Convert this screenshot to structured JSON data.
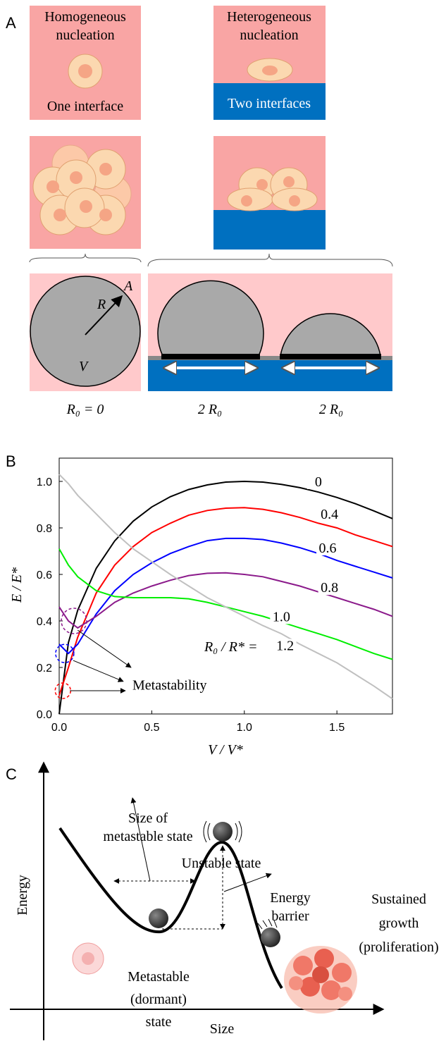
{
  "panel_a": {
    "letter": "A",
    "homogeneous": {
      "title": [
        "Homogeneous",
        "nucleation"
      ],
      "caption": "One interface"
    },
    "heterogeneous": {
      "title": [
        "Heterogeneous",
        "nucleation"
      ],
      "caption": "Two interfaces"
    },
    "sphere_labels": {
      "radius": "R",
      "area": "A",
      "volume": "V"
    },
    "bottom_labels": [
      "R₀ = 0",
      "2 R₀",
      "2 R₀"
    ]
  },
  "panel_b": {
    "letter": "B",
    "type": "line",
    "x": [
      0,
      0.05,
      0.1,
      0.2,
      0.3,
      0.4,
      0.5,
      0.6,
      0.7,
      0.8,
      0.9,
      1.0,
      1.1,
      1.2,
      1.3,
      1.4,
      1.5,
      1.6,
      1.7,
      1.8
    ],
    "series": [
      {
        "name": "0",
        "color": "#000000",
        "values": [
          0,
          0.307,
          0.446,
          0.626,
          0.744,
          0.829,
          0.89,
          0.934,
          0.965,
          0.985,
          0.997,
          1.0,
          0.997,
          0.987,
          0.973,
          0.954,
          0.931,
          0.904,
          0.873,
          0.84
        ]
      },
      {
        "name": "0.4",
        "color": "#ff0000",
        "values": [
          0.08,
          0.2,
          0.33,
          0.52,
          0.64,
          0.72,
          0.78,
          0.82,
          0.855,
          0.875,
          0.885,
          0.887,
          0.88,
          0.865,
          0.845,
          0.82,
          0.8,
          0.77,
          0.745,
          0.72
        ]
      },
      {
        "name": "0.6",
        "color": "#0000ff",
        "values": [
          0.3,
          0.26,
          0.3,
          0.43,
          0.53,
          0.6,
          0.65,
          0.69,
          0.72,
          0.745,
          0.755,
          0.755,
          0.75,
          0.735,
          0.715,
          0.69,
          0.66,
          0.635,
          0.61,
          0.585
        ]
      },
      {
        "name": "0.8",
        "color": "#8b1a8b",
        "values": [
          0.46,
          0.4,
          0.37,
          0.42,
          0.48,
          0.52,
          0.55,
          0.575,
          0.595,
          0.605,
          0.607,
          0.6,
          0.59,
          0.57,
          0.55,
          0.525,
          0.5,
          0.475,
          0.45,
          0.42
        ]
      },
      {
        "name": "1.0",
        "color": "#00ee00",
        "values": [
          0.71,
          0.64,
          0.59,
          0.53,
          0.505,
          0.5,
          0.5,
          0.5,
          0.495,
          0.48,
          0.46,
          0.44,
          0.42,
          0.395,
          0.37,
          0.345,
          0.32,
          0.29,
          0.26,
          0.235
        ]
      },
      {
        "name": "1.2",
        "color": "#c0c0c0",
        "values": [
          1.03,
          0.99,
          0.94,
          0.86,
          0.78,
          0.71,
          0.655,
          0.6,
          0.55,
          0.5,
          0.46,
          0.42,
          0.38,
          0.345,
          0.3,
          0.26,
          0.22,
          0.17,
          0.12,
          0.065
        ]
      }
    ],
    "xlim": [
      0,
      1.8
    ],
    "ylim": [
      0,
      1.1
    ],
    "xticks": [
      {
        "value": 0,
        "label": "0.0"
      },
      0.5,
      {
        "value": 1,
        "label": "1.0"
      },
      1.5
    ],
    "yticks": [
      {
        "value": 0,
        "label": "0.0"
      },
      0.2,
      0.4,
      0.6,
      0.8,
      {
        "value": 1,
        "label": "1.0"
      }
    ],
    "x_label": "V / V*",
    "y_label": "E / E*",
    "series_prefix": "R₀ / R* =",
    "annotation": "Metastability"
  },
  "panel_c": {
    "letter": "C",
    "x_label": "Size",
    "y_label": "Energy",
    "labels": {
      "size_of": [
        "Size of",
        "metastable state"
      ],
      "unstable": "Unstable state",
      "barrier": [
        "Energy",
        "barrier"
      ],
      "growth": [
        "Sustained",
        "growth",
        "(proliferation)"
      ],
      "dormant": [
        "Metastable",
        "(dormant)",
        "state"
      ]
    }
  }
}
